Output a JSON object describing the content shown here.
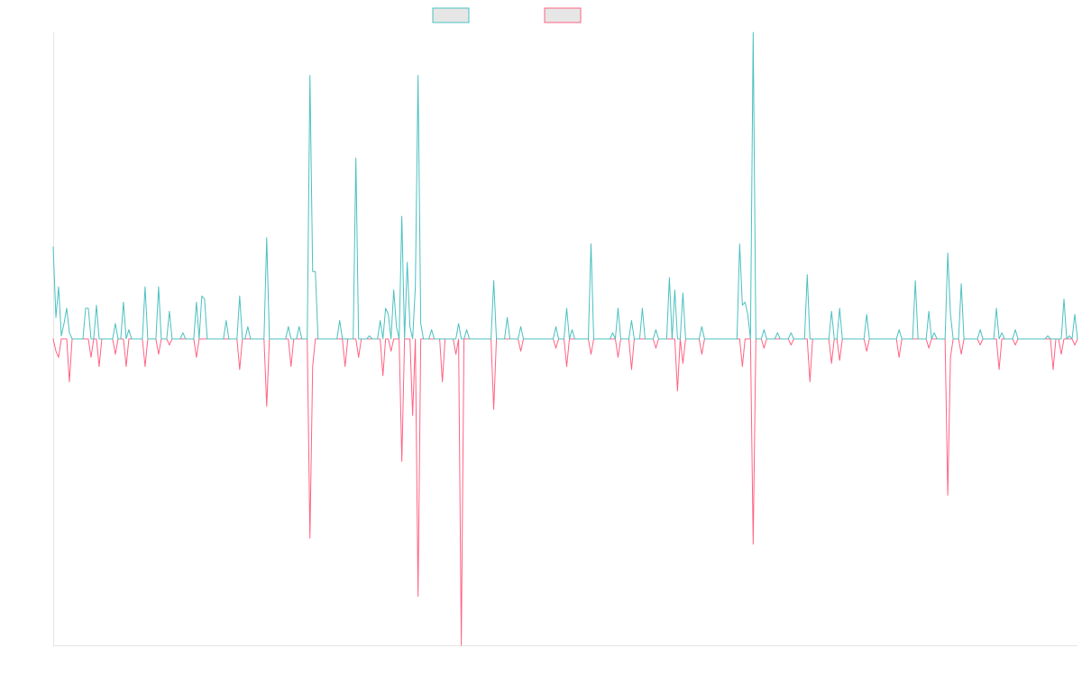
{
  "colors": {
    "series_a": "#4bc0c0",
    "series_b": "#ff6384",
    "legend_fill": "#e6e6e6",
    "axis": "#e5e5e5"
  },
  "legend": {
    "placement": "top-center"
  },
  "chart_data": {
    "type": "line",
    "title": "",
    "xlabel": "",
    "ylabel": "",
    "grid": false,
    "ylim": [
      -1,
      1
    ],
    "x_count": 380,
    "series": [
      {
        "color": "#4bc0c0",
        "baseline": 0,
        "peaks": [
          [
            0,
            0.3
          ],
          [
            1,
            0.07
          ],
          [
            2,
            0.17
          ],
          [
            3,
            0.01
          ],
          [
            4,
            0.05
          ],
          [
            5,
            0.1
          ],
          [
            6,
            0.02
          ],
          [
            12,
            0.1
          ],
          [
            13,
            0.1
          ],
          [
            16,
            0.11
          ],
          [
            23,
            0.05
          ],
          [
            26,
            0.12
          ],
          [
            28,
            0.03
          ],
          [
            34,
            0.17
          ],
          [
            39,
            0.17
          ],
          [
            43,
            0.09
          ],
          [
            48,
            0.02
          ],
          [
            53,
            0.12
          ],
          [
            55,
            0.14
          ],
          [
            56,
            0.13
          ],
          [
            64,
            0.06
          ],
          [
            69,
            0.14
          ],
          [
            72,
            0.04
          ],
          [
            79,
            0.33
          ],
          [
            87,
            0.04
          ],
          [
            91,
            0.04
          ],
          [
            95,
            0.86
          ],
          [
            96,
            0.22
          ],
          [
            97,
            0.22
          ],
          [
            106,
            0.06
          ],
          [
            112,
            0.59
          ],
          [
            117,
            0.01
          ],
          [
            121,
            0.06
          ],
          [
            123,
            0.1
          ],
          [
            124,
            0.08
          ],
          [
            126,
            0.16
          ],
          [
            127,
            0.04
          ],
          [
            129,
            0.4
          ],
          [
            131,
            0.25
          ],
          [
            132,
            0.04
          ],
          [
            134,
            0.17
          ],
          [
            135,
            0.86
          ],
          [
            136,
            0.05
          ],
          [
            140,
            0.03
          ],
          [
            150,
            0.05
          ],
          [
            153,
            0.03
          ],
          [
            163,
            0.19
          ],
          [
            168,
            0.07
          ],
          [
            173,
            0.04
          ],
          [
            186,
            0.04
          ],
          [
            190,
            0.1
          ],
          [
            192,
            0.03
          ],
          [
            199,
            0.31
          ],
          [
            207,
            0.02
          ],
          [
            209,
            0.1
          ],
          [
            214,
            0.06
          ],
          [
            218,
            0.1
          ],
          [
            223,
            0.03
          ],
          [
            228,
            0.2
          ],
          [
            230,
            0.16
          ],
          [
            233,
            0.15
          ],
          [
            240,
            0.04
          ],
          [
            254,
            0.31
          ],
          [
            255,
            0.11
          ],
          [
            256,
            0.12
          ],
          [
            257,
            0.08
          ],
          [
            259,
            1.0
          ],
          [
            263,
            0.03
          ],
          [
            268,
            0.02
          ],
          [
            273,
            0.02
          ],
          [
            279,
            0.21
          ],
          [
            288,
            0.09
          ],
          [
            291,
            0.1
          ],
          [
            301,
            0.08
          ],
          [
            313,
            0.03
          ],
          [
            319,
            0.19
          ],
          [
            324,
            0.09
          ],
          [
            326,
            0.02
          ],
          [
            331,
            0.28
          ],
          [
            332,
            0.08
          ],
          [
            336,
            0.18
          ],
          [
            343,
            0.03
          ],
          [
            349,
            0.1
          ],
          [
            351,
            0.02
          ],
          [
            356,
            0.03
          ],
          [
            368,
            0.01
          ],
          [
            374,
            0.13
          ],
          [
            376,
            0.01
          ],
          [
            378,
            0.08
          ]
        ]
      },
      {
        "color": "#ff6384",
        "baseline": 0,
        "peaks": [
          [
            1,
            -0.04
          ],
          [
            2,
            -0.06
          ],
          [
            6,
            -0.14
          ],
          [
            14,
            -0.06
          ],
          [
            17,
            -0.09
          ],
          [
            23,
            -0.05
          ],
          [
            27,
            -0.09
          ],
          [
            34,
            -0.09
          ],
          [
            39,
            -0.05
          ],
          [
            43,
            -0.02
          ],
          [
            53,
            -0.06
          ],
          [
            69,
            -0.1
          ],
          [
            79,
            -0.22
          ],
          [
            88,
            -0.09
          ],
          [
            95,
            -0.65
          ],
          [
            96,
            -0.09
          ],
          [
            108,
            -0.09
          ],
          [
            113,
            -0.06
          ],
          [
            122,
            -0.12
          ],
          [
            125,
            -0.04
          ],
          [
            129,
            -0.4
          ],
          [
            133,
            -0.25
          ],
          [
            135,
            -0.84
          ],
          [
            144,
            -0.14
          ],
          [
            149,
            -0.05
          ],
          [
            151,
            -1.0
          ],
          [
            163,
            -0.23
          ],
          [
            173,
            -0.04
          ],
          [
            186,
            -0.03
          ],
          [
            190,
            -0.09
          ],
          [
            199,
            -0.05
          ],
          [
            209,
            -0.06
          ],
          [
            214,
            -0.1
          ],
          [
            223,
            -0.03
          ],
          [
            231,
            -0.17
          ],
          [
            233,
            -0.08
          ],
          [
            240,
            -0.05
          ],
          [
            255,
            -0.09
          ],
          [
            259,
            -0.67
          ],
          [
            263,
            -0.03
          ],
          [
            273,
            -0.02
          ],
          [
            280,
            -0.14
          ],
          [
            288,
            -0.08
          ],
          [
            291,
            -0.07
          ],
          [
            301,
            -0.04
          ],
          [
            313,
            -0.06
          ],
          [
            324,
            -0.03
          ],
          [
            331,
            -0.51
          ],
          [
            332,
            -0.06
          ],
          [
            336,
            -0.05
          ],
          [
            343,
            -0.02
          ],
          [
            350,
            -0.1
          ],
          [
            356,
            -0.02
          ],
          [
            370,
            -0.1
          ],
          [
            373,
            -0.05
          ],
          [
            378,
            -0.02
          ]
        ]
      }
    ]
  }
}
